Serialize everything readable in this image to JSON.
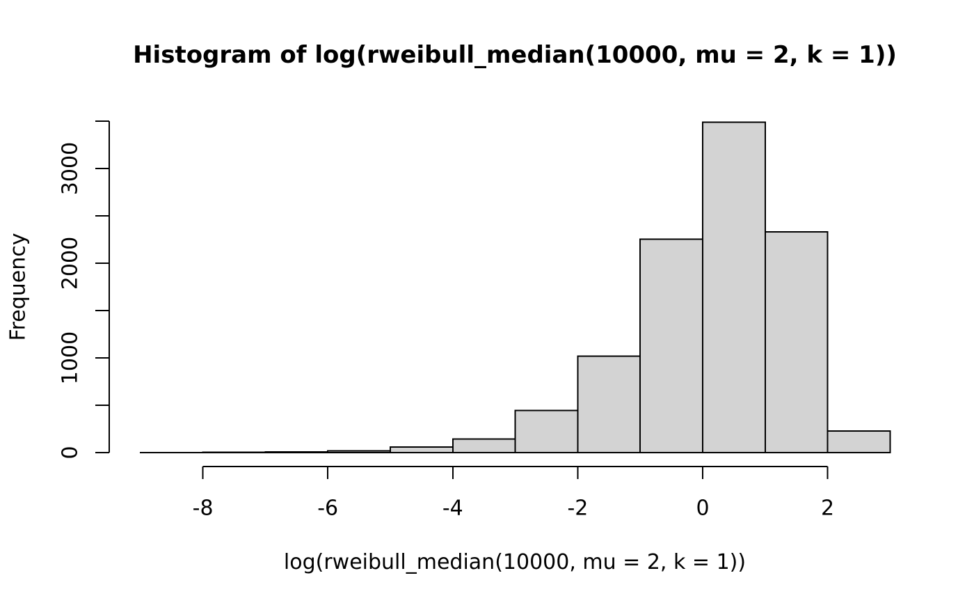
{
  "chart_data": {
    "type": "bar",
    "subtype": "histogram",
    "title": "Histogram of log(rweibull_median(10000, mu = 2, k = 1))",
    "xlabel": "log(rweibull_median(10000, mu = 2, k = 1))",
    "ylabel": "Frequency",
    "bin_edges": [
      -9,
      -8,
      -7,
      -6,
      -5,
      -4,
      -3,
      -2,
      -1,
      0,
      1,
      2,
      3
    ],
    "counts": [
      1,
      3,
      8,
      18,
      58,
      145,
      445,
      1020,
      2255,
      3490,
      2330,
      227
    ],
    "x_ticks": [
      -8,
      -6,
      -4,
      -2,
      0,
      2
    ],
    "x_tick_labels": [
      "-8",
      "-6",
      "-4",
      "-2",
      "0",
      "2"
    ],
    "y_ticks": [
      0,
      500,
      1000,
      1500,
      2000,
      2500,
      3000,
      3500
    ],
    "y_tick_labels": [
      "0",
      "1000",
      "2000",
      "3000"
    ],
    "y_labeled_ticks": [
      0,
      1000,
      2000,
      3000
    ],
    "xlim": [
      -9,
      3
    ],
    "ylim": [
      0,
      3500
    ],
    "grid": false,
    "legend_position": "none",
    "bar_fill": "#d3d3d3",
    "bar_stroke": "#000000",
    "axis_color": "#000000",
    "text_color": "#000000",
    "background": "#ffffff"
  }
}
